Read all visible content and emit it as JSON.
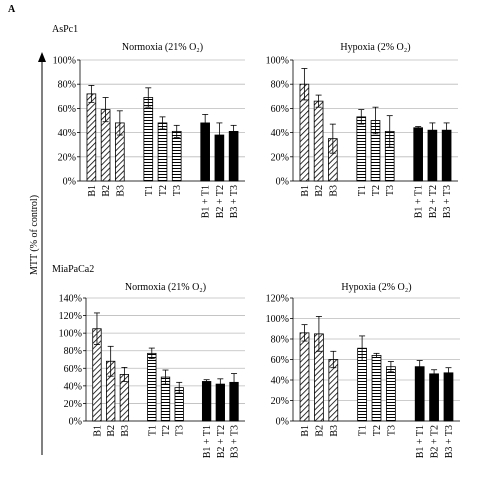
{
  "panel_label": "A",
  "group_labels": [
    "AsPc1",
    "MiaPaCa2"
  ],
  "y_axis_label": "MTT (% of control)",
  "chart_data": [
    {
      "type": "bar",
      "title": "Normoxia  (21% O₂)",
      "categories": [
        "B1",
        "B2",
        "B3",
        "T1",
        "T2",
        "T3",
        "B1 + T1",
        "B2 + T2",
        "B3 + T3"
      ],
      "values": [
        72,
        59,
        48,
        69,
        48,
        41,
        48,
        38,
        41
      ],
      "errors": [
        7,
        10,
        10,
        8,
        5,
        5,
        7,
        10,
        5
      ],
      "bar_styles": [
        "diagonal",
        "diagonal",
        "diagonal",
        "horizontal",
        "horizontal",
        "horizontal",
        "solid",
        "solid",
        "solid"
      ],
      "ylim": [
        0,
        100
      ],
      "yticks": [
        {
          "value": 0,
          "label": "0%"
        },
        {
          "value": 20,
          "label": "20%"
        },
        {
          "value": 40,
          "label": "40%"
        },
        {
          "value": 60,
          "label": "60%"
        },
        {
          "value": 80,
          "label": "80%"
        },
        {
          "value": 100,
          "label": "100%"
        }
      ],
      "grid": true
    },
    {
      "type": "bar",
      "title": "Hypoxia  (2% O₂)",
      "categories": [
        "B1",
        "B2",
        "B3",
        "T1",
        "T2",
        "T3",
        "B1 + T1",
        "B2 + T2",
        "B3 + T3"
      ],
      "values": [
        80,
        66,
        35,
        53,
        50,
        41,
        44,
        42,
        42
      ],
      "errors": [
        13,
        5,
        12,
        6,
        11,
        13,
        1,
        6,
        6
      ],
      "bar_styles": [
        "diagonal",
        "diagonal",
        "diagonal",
        "horizontal",
        "horizontal",
        "horizontal",
        "solid",
        "solid",
        "solid"
      ],
      "ylim": [
        0,
        100
      ],
      "yticks": [
        {
          "value": 0,
          "label": "0%"
        },
        {
          "value": 20,
          "label": "20%"
        },
        {
          "value": 40,
          "label": "40%"
        },
        {
          "value": 60,
          "label": "60%"
        },
        {
          "value": 80,
          "label": "80%"
        },
        {
          "value": 100,
          "label": "100%"
        }
      ],
      "grid": true
    },
    {
      "type": "bar",
      "title": "Normoxia  (21% O₂)",
      "categories": [
        "B1",
        "B2",
        "B3",
        "T1",
        "T2",
        "T3",
        "B1 + T1",
        "B2 + T2",
        "B3 + T3"
      ],
      "values": [
        105,
        68,
        53,
        77,
        50,
        38,
        45,
        42,
        44
      ],
      "errors": [
        18,
        17,
        8,
        6,
        8,
        6,
        2,
        6,
        10
      ],
      "bar_styles": [
        "diagonal",
        "diagonal",
        "diagonal",
        "horizontal",
        "horizontal",
        "horizontal",
        "solid",
        "solid",
        "solid"
      ],
      "ylim": [
        0,
        140
      ],
      "yticks": [
        {
          "value": 0,
          "label": "0%"
        },
        {
          "value": 20,
          "label": "20%"
        },
        {
          "value": 40,
          "label": "40%"
        },
        {
          "value": 60,
          "label": "60%"
        },
        {
          "value": 80,
          "label": "80%"
        },
        {
          "value": 100,
          "label": "100%"
        },
        {
          "value": 120,
          "label": "120%"
        },
        {
          "value": 140,
          "label": "140%"
        }
      ],
      "grid": true
    },
    {
      "type": "bar",
      "title": "Hypoxia  (2% O₂)",
      "categories": [
        "B1",
        "B2",
        "B3",
        "T1",
        "T2",
        "T3",
        "B1 + T1",
        "B2 + T2",
        "B3 + T3"
      ],
      "values": [
        86,
        85,
        60,
        71,
        64,
        53,
        53,
        46,
        47
      ],
      "errors": [
        8,
        17,
        8,
        12,
        2,
        5,
        6,
        4,
        5
      ],
      "bar_styles": [
        "diagonal",
        "diagonal",
        "diagonal",
        "horizontal",
        "horizontal",
        "horizontal",
        "solid",
        "solid",
        "solid"
      ],
      "ylim": [
        0,
        120
      ],
      "yticks": [
        {
          "value": 0,
          "label": "0%"
        },
        {
          "value": 20,
          "label": "20%"
        },
        {
          "value": 40,
          "label": "40%"
        },
        {
          "value": 60,
          "label": "60%"
        },
        {
          "value": 80,
          "label": "80%"
        },
        {
          "value": 100,
          "label": "100%"
        },
        {
          "value": 120,
          "label": "120%"
        }
      ],
      "grid": true
    }
  ]
}
